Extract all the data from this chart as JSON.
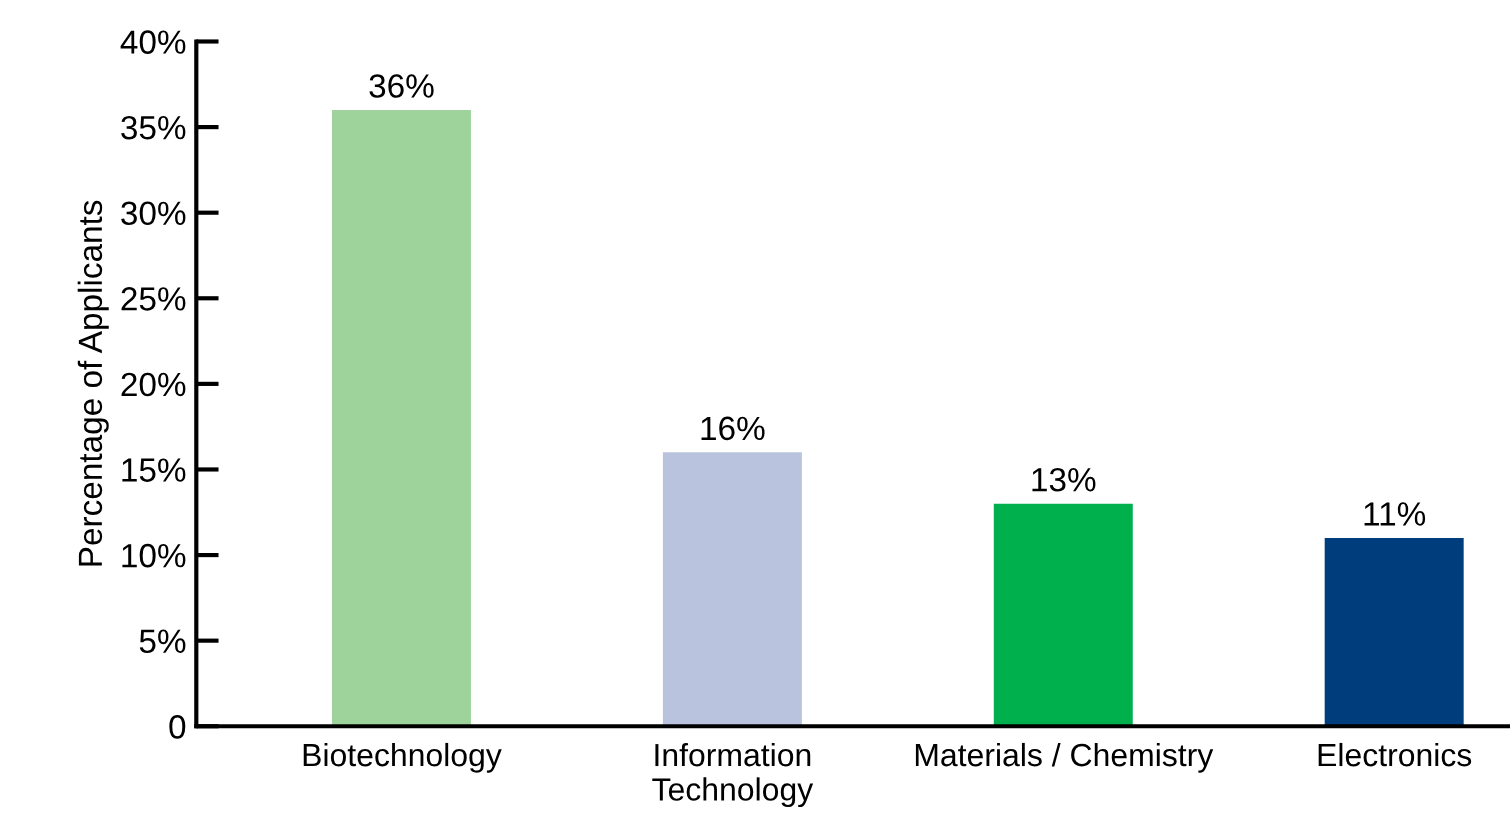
{
  "chart_data": {
    "type": "bar",
    "ylabel": "Percentage of Applicants",
    "categories": [
      "Biotechnology",
      "Information\nTechnology",
      "Materials / Chemistry",
      "Electronics"
    ],
    "values": [
      36,
      16,
      13,
      11
    ],
    "colors": [
      "#9fd39c",
      "#b9c3de",
      "#00b04c",
      "#003d7c"
    ],
    "value_labels": [
      "36%",
      "16%",
      "13%",
      "11%"
    ],
    "ylim": [
      0,
      40
    ],
    "yticks": [
      0,
      {
        "value": 5,
        "label": "5%"
      },
      {
        "value": 10,
        "label": "10%"
      },
      {
        "value": 15,
        "label": "15%"
      },
      {
        "value": 20,
        "label": "20%"
      },
      {
        "value": 25,
        "label": "25%"
      },
      {
        "value": 30,
        "label": "30%"
      },
      {
        "value": 35,
        "label": "35%"
      },
      {
        "value": 40,
        "label": "40%"
      }
    ],
    "grid": false,
    "legend": false
  }
}
